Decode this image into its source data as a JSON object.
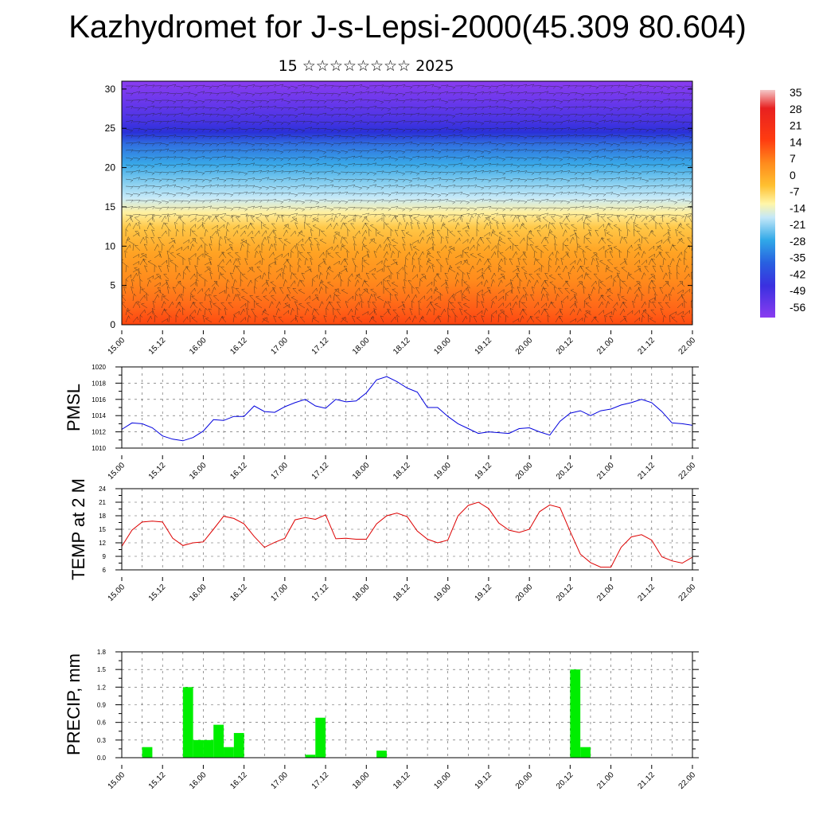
{
  "title": "Kazhydromet for J-s-Lepsi-2000(45.309 80.604)",
  "subtitle": "15 ☆☆☆☆☆☆☆☆ 2025",
  "colors": {
    "pmsl_line": "#0000dd",
    "temp_line": "#dd0000",
    "precip_bar": "#00ee00"
  },
  "time_ticks": [
    "15.00",
    "15.12",
    "16.00",
    "16.12",
    "17.00",
    "17.12",
    "18.00",
    "18.12",
    "19.00",
    "19.12",
    "20.00",
    "20.12",
    "21.00",
    "21.12",
    "22.00"
  ],
  "chart_data": [
    {
      "type": "heatmap",
      "name": "upper-air",
      "x_ticks": [
        "15.00",
        "15.12",
        "16.00",
        "16.12",
        "17.00",
        "17.12",
        "18.00",
        "18.12",
        "19.00",
        "19.12",
        "20.00",
        "20.12",
        "21.00",
        "21.12",
        "22.00"
      ],
      "y_ticks": [
        "0",
        "5",
        "10",
        "15",
        "20",
        "25",
        "30"
      ],
      "ylim": [
        0,
        31
      ],
      "colorbar_labels": [
        "35",
        "28",
        "21",
        "14",
        "7",
        "0",
        "-7",
        "-14",
        "-21",
        "-28",
        "-35",
        "-42",
        "-49",
        "-56"
      ],
      "overlay": "wind barbs"
    },
    {
      "type": "line",
      "ylabel": "PMSL",
      "ylim": [
        1010,
        1020
      ],
      "y_ticks": [
        "1010",
        "1012",
        "1014",
        "1016",
        "1018",
        "1020"
      ],
      "x_ticks": [
        "15.00",
        "15.12",
        "16.00",
        "16.12",
        "17.00",
        "17.12",
        "18.00",
        "18.12",
        "19.00",
        "19.12",
        "20.00",
        "20.12",
        "21.00",
        "21.12",
        "22.00"
      ],
      "x_hours": [
        0,
        3,
        6,
        9,
        12,
        15,
        18,
        21,
        24,
        27,
        30,
        33,
        36,
        39,
        42,
        45,
        48,
        51,
        54,
        57,
        60,
        63,
        66,
        69,
        72,
        75,
        78,
        81,
        84,
        87,
        90,
        93,
        96,
        99,
        102,
        105,
        108,
        111,
        114,
        117,
        120,
        123,
        126,
        129,
        132,
        135,
        138,
        141,
        144,
        147,
        150,
        153,
        156,
        159,
        162,
        165,
        168
      ],
      "values": [
        1012.3,
        1013.1,
        1013.0,
        1012.5,
        1011.5,
        1011.1,
        1010.9,
        1011.3,
        1012.1,
        1013.5,
        1013.4,
        1013.9,
        1013.9,
        1015.2,
        1014.5,
        1014.4,
        1015.1,
        1015.6,
        1016.0,
        1015.2,
        1014.9,
        1016.0,
        1015.7,
        1015.8,
        1016.8,
        1018.4,
        1018.8,
        1018.2,
        1017.4,
        1016.9,
        1015.0,
        1015.0,
        1013.9,
        1013.0,
        1012.4,
        1011.8,
        1012.0,
        1011.9,
        1011.8,
        1012.4,
        1012.5,
        1012.0,
        1011.6,
        1013.3,
        1014.3,
        1014.6,
        1014.0,
        1014.6,
        1014.8,
        1015.3,
        1015.6,
        1016.0,
        1015.6,
        1014.5,
        1013.1,
        1013.0,
        1012.8
      ]
    },
    {
      "type": "line",
      "ylabel": "TEMP at 2 M",
      "ylim": [
        6,
        24
      ],
      "y_ticks": [
        "6",
        "9",
        "12",
        "15",
        "18",
        "21",
        "24"
      ],
      "x_ticks": [
        "15.00",
        "15.12",
        "16.00",
        "16.12",
        "17.00",
        "17.12",
        "18.00",
        "18.12",
        "19.00",
        "19.12",
        "20.00",
        "20.12",
        "21.00",
        "21.12",
        "22.00"
      ],
      "x_hours": [
        0,
        3,
        6,
        9,
        12,
        15,
        18,
        21,
        24,
        27,
        30,
        33,
        36,
        39,
        42,
        45,
        48,
        51,
        54,
        57,
        60,
        63,
        66,
        69,
        72,
        75,
        78,
        81,
        84,
        87,
        90,
        93,
        96,
        99,
        102,
        105,
        108,
        111,
        114,
        117,
        120,
        123,
        126,
        129,
        132,
        135,
        138,
        141,
        144,
        147,
        150,
        153,
        156,
        159,
        162,
        165,
        168
      ],
      "values": [
        11.2,
        14.8,
        16.6,
        16.8,
        16.6,
        13.0,
        11.4,
        12.0,
        12.2,
        15.0,
        17.9,
        17.4,
        16.2,
        13.4,
        11.0,
        12.1,
        13.0,
        17.1,
        17.6,
        17.2,
        18.2,
        12.9,
        13.0,
        12.8,
        12.8,
        16.2,
        18.0,
        18.6,
        17.8,
        14.6,
        12.8,
        12.0,
        12.6,
        18.0,
        20.3,
        21.0,
        19.6,
        16.4,
        14.8,
        14.3,
        15.0,
        18.9,
        20.4,
        19.8,
        14.5,
        9.5,
        7.6,
        6.6,
        6.6,
        11.0,
        13.3,
        13.8,
        12.6,
        8.9,
        8.0,
        7.5,
        8.8
      ]
    },
    {
      "type": "bar",
      "ylabel": "PRECIP, mm",
      "ylim": [
        0,
        1.8
      ],
      "y_ticks": [
        "0.0",
        "0.3",
        "0.6",
        "0.9",
        "1.2",
        "1.5",
        "1.8"
      ],
      "x_ticks": [
        "15.00",
        "15.12",
        "16.00",
        "16.12",
        "17.00",
        "17.12",
        "18.00",
        "18.12",
        "19.00",
        "19.12",
        "20.00",
        "20.12",
        "21.00",
        "21.12",
        "22.00"
      ],
      "bars": [
        {
          "start_hour": 6,
          "end_hour": 9,
          "value": 0.18
        },
        {
          "start_hour": 18,
          "end_hour": 21,
          "value": 1.2
        },
        {
          "start_hour": 21,
          "end_hour": 24,
          "value": 0.3
        },
        {
          "start_hour": 24,
          "end_hour": 27,
          "value": 0.3
        },
        {
          "start_hour": 27,
          "end_hour": 30,
          "value": 0.56
        },
        {
          "start_hour": 30,
          "end_hour": 33,
          "value": 0.18
        },
        {
          "start_hour": 33,
          "end_hour": 36,
          "value": 0.42
        },
        {
          "start_hour": 54,
          "end_hour": 57,
          "value": 0.05
        },
        {
          "start_hour": 57,
          "end_hour": 60,
          "value": 0.68
        },
        {
          "start_hour": 75,
          "end_hour": 78,
          "value": 0.12
        },
        {
          "start_hour": 132,
          "end_hour": 135,
          "value": 1.5
        },
        {
          "start_hour": 135,
          "end_hour": 138,
          "value": 0.18
        }
      ]
    }
  ]
}
